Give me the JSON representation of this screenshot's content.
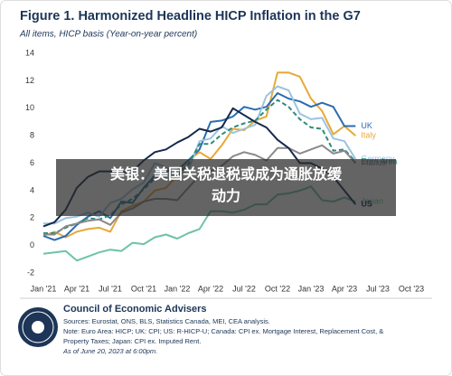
{
  "chart_data": {
    "type": "line",
    "title": "Figure 1. Harmonized Headline HICP Inflation in the G7",
    "subtitle": "All items, HICP basis (Year-on-year percent)",
    "categories": [
      "Jan '21",
      null,
      null,
      "Apr '21",
      null,
      null,
      "Jul '21",
      null,
      null,
      "Oct '21",
      null,
      null,
      "Jan '22",
      null,
      null,
      "Apr '22",
      null,
      null,
      "Jul '22",
      null,
      null,
      "Oct '22",
      null,
      null,
      "Jan '23",
      null,
      null,
      "Apr '23",
      null,
      null,
      "Jul '23",
      null,
      null,
      "Oct '23"
    ],
    "ylim": [
      -2,
      14
    ],
    "yticks": [
      -2,
      0,
      2,
      4,
      6,
      8,
      10,
      12,
      14
    ],
    "grid": false,
    "series": [
      {
        "name": "Italy",
        "color": "#e8a838",
        "values": [
          0.7,
          1.0,
          0.6,
          1.0,
          1.2,
          1.3,
          1.0,
          2.5,
          2.9,
          3.2,
          4.0,
          4.2,
          5.1,
          6.2,
          6.8,
          6.3,
          7.3,
          8.5,
          8.4,
          9.1,
          9.4,
          12.6,
          12.6,
          12.3,
          10.7,
          9.8,
          8.1,
          8.7,
          8.0,
          null,
          null,
          null,
          null,
          null
        ]
      },
      {
        "name": "UK",
        "color": "#2b6cb0",
        "values": [
          0.7,
          0.4,
          0.7,
          1.5,
          2.1,
          2.5,
          2.0,
          3.2,
          3.1,
          4.2,
          5.1,
          5.4,
          5.5,
          6.2,
          7.0,
          9.0,
          9.1,
          9.4,
          10.1,
          9.9,
          10.1,
          11.1,
          10.7,
          10.5,
          10.1,
          10.4,
          10.1,
          8.7,
          8.7,
          null,
          null,
          null,
          null,
          null
        ]
      },
      {
        "name": "Germany",
        "color": "#9cc3e0",
        "values": [
          1.6,
          1.6,
          2.0,
          2.1,
          2.4,
          2.1,
          3.1,
          3.4,
          4.1,
          4.6,
          6.0,
          5.7,
          5.1,
          5.5,
          7.6,
          7.8,
          8.7,
          8.2,
          8.5,
          8.8,
          10.9,
          11.6,
          11.3,
          9.6,
          9.2,
          9.3,
          7.8,
          7.6,
          6.3,
          null,
          null,
          null,
          null,
          null
        ]
      },
      {
        "name": "Euro Area",
        "color": "#2e8b7a",
        "dashed": true,
        "values": [
          0.9,
          0.9,
          1.3,
          1.6,
          2.0,
          1.9,
          2.2,
          3.0,
          3.4,
          4.1,
          4.9,
          5.0,
          5.1,
          5.9,
          7.4,
          7.4,
          8.1,
          8.6,
          8.9,
          9.1,
          9.9,
          10.6,
          10.1,
          9.2,
          8.6,
          8.5,
          6.9,
          7.0,
          6.1,
          null,
          null,
          null,
          null,
          null
        ]
      },
      {
        "name": "France",
        "color": "#8a8a8a",
        "values": [
          0.8,
          0.8,
          1.4,
          1.6,
          1.8,
          1.9,
          1.5,
          2.4,
          2.7,
          3.2,
          3.4,
          3.4,
          3.3,
          4.2,
          5.1,
          5.4,
          5.8,
          6.5,
          6.8,
          6.6,
          6.2,
          7.1,
          7.1,
          6.7,
          7.0,
          7.3,
          6.7,
          6.9,
          6.0,
          null,
          null,
          null,
          null,
          null
        ]
      },
      {
        "name": "Japan",
        "color": "#6cc4a4",
        "values": [
          -0.6,
          -0.5,
          -0.4,
          -1.1,
          -0.8,
          -0.5,
          -0.3,
          -0.4,
          0.2,
          0.1,
          0.6,
          0.8,
          0.5,
          0.9,
          1.2,
          2.5,
          2.5,
          2.4,
          2.6,
          3.0,
          3.0,
          3.7,
          3.8,
          4.0,
          4.3,
          3.3,
          3.2,
          3.5,
          3.2,
          null,
          null,
          null,
          null,
          null
        ]
      },
      {
        "name": "US",
        "color": "#14294d",
        "values": [
          1.4,
          1.7,
          2.6,
          4.2,
          5.0,
          5.4,
          5.4,
          5.3,
          5.4,
          6.2,
          6.8,
          7.0,
          7.5,
          7.9,
          8.5,
          8.3,
          8.6,
          10.0,
          9.5,
          9.0,
          8.6,
          7.7,
          7.1,
          6.0,
          6.0,
          5.6,
          5.0,
          4.0,
          3.0,
          null,
          null,
          null,
          null,
          null
        ]
      }
    ]
  },
  "overlay": {
    "lines": [
      "美银：美国关税退税或成为通胀放缓",
      "动力"
    ]
  },
  "footer": {
    "org": "Council of Economic Advisers",
    "lines": [
      "Sources: Eurostat, ONS, BLS, Statistics Canada, MEI, CEA analysis.",
      "Note: Euro Area: HICP; UK: CPI; US: R-HICP-U; Canada: CPI ex. Mortgage Interest, Replacement Cost, &",
      "Property Taxes; Japan: CPI ex. Imputed Rent.",
      "As of June 20, 2023 at 6:00pm."
    ]
  }
}
